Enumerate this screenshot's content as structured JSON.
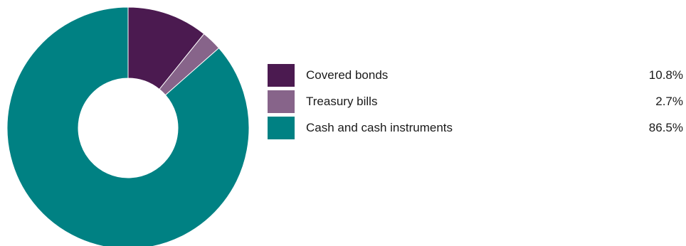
{
  "chart_data": {
    "type": "pie",
    "donut": true,
    "title": "",
    "legend_position": "right",
    "slices": [
      {
        "label": "Covered bonds",
        "value": 10.8,
        "value_label": "10.8%",
        "color": "#4b1a50"
      },
      {
        "label": "Treasury bills",
        "value": 2.7,
        "value_label": "2.7%",
        "color": "#87648a"
      },
      {
        "label": "Cash and cash instruments",
        "value": 86.5,
        "value_label": "86.5%",
        "color": "#008183"
      }
    ]
  }
}
